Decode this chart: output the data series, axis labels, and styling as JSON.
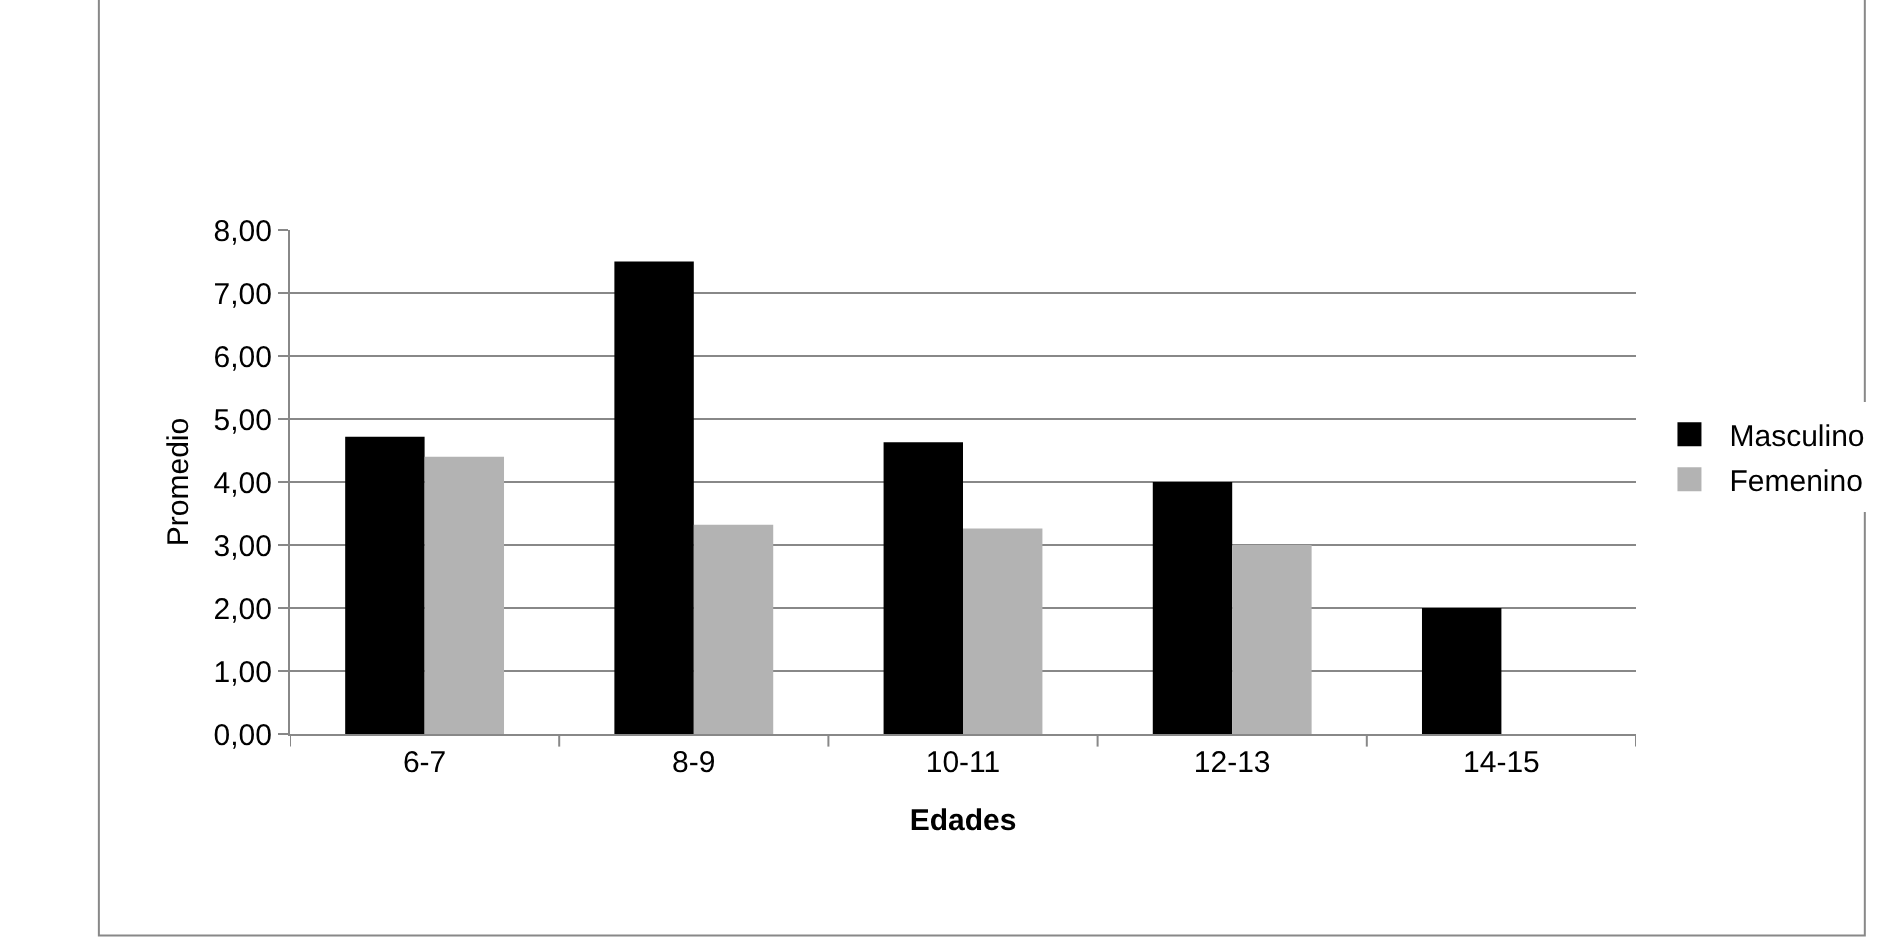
{
  "chart_data": {
    "type": "bar",
    "xlabel": "Edades",
    "ylabel": "Promedio",
    "categories": [
      "6-7",
      "8-9",
      "10-11",
      "12-13",
      "14-15"
    ],
    "series": [
      {
        "name": "Masculino",
        "color": "#000000",
        "values": [
          4.72,
          7.5,
          4.63,
          4.0,
          2.0
        ]
      },
      {
        "name": "Femenino",
        "color": "#b3b3b3",
        "values": [
          4.4,
          3.32,
          3.26,
          3.0,
          null
        ]
      }
    ],
    "ylim": [
      0,
      8
    ],
    "yticks": [
      {
        "value": 0,
        "label": "0,00"
      },
      {
        "value": 1,
        "label": "1,00"
      },
      {
        "value": 2,
        "label": "2,00"
      },
      {
        "value": 3,
        "label": "3,00"
      },
      {
        "value": 4,
        "label": "4,00"
      },
      {
        "value": 5,
        "label": "5,00"
      },
      {
        "value": 6,
        "label": "6,00"
      },
      {
        "value": 7,
        "label": "7,00"
      },
      {
        "value": 8,
        "label": "8,00"
      }
    ],
    "grid": "y",
    "legend": "right"
  }
}
